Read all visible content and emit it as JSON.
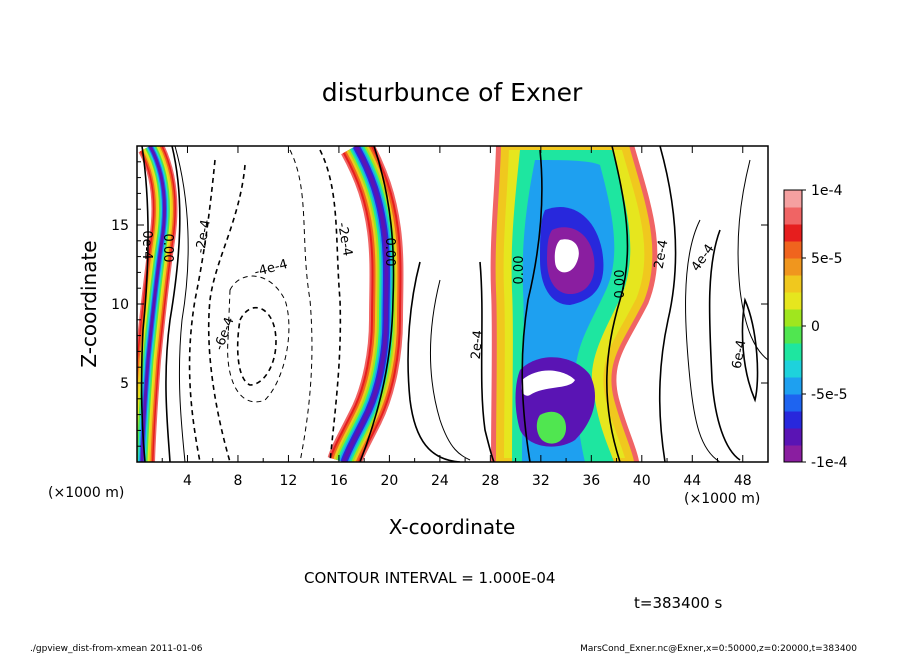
{
  "chart_data": {
    "type": "heatmap",
    "title": "disturbunce of Exner",
    "xlabel": "X-coordinate",
    "ylabel": "Z-coordinate",
    "x_unit": "(×1000 m)",
    "y_unit": "(×1000 m)",
    "xlim": [
      0,
      50
    ],
    "ylim": [
      0,
      20
    ],
    "x_ticks": [
      4,
      8,
      12,
      16,
      20,
      24,
      28,
      32,
      36,
      40,
      44,
      48
    ],
    "y_ticks": [
      5,
      10,
      15
    ],
    "colorbar": {
      "min": -0.0001,
      "max": 0.0001,
      "tick_labels": [
        "1e-4",
        "5e-5",
        "0",
        "-5e-5",
        "-1e-4"
      ],
      "colors": [
        "#8a1ea0",
        "#5a14b4",
        "#2828dc",
        "#1e64f0",
        "#1ea0f0",
        "#1ed2dc",
        "#1ee6a0",
        "#50e650",
        "#a0e61e",
        "#e6e61e",
        "#f0c81e",
        "#f0961e",
        "#f0641e",
        "#e61e1e",
        "#f06464",
        "#f5a0a0"
      ]
    },
    "contour_labels": [
      "0e-4",
      "0.00",
      "-2e-4",
      "-4e-4",
      "-6e-4",
      "-2e-4",
      "0.00",
      "2e-4",
      "0.00",
      "0.00",
      "2e-4",
      "4e-4",
      "6e-4"
    ],
    "contour_interval": "CONTOUR INTERVAL = 1.000E-04",
    "time": "t=383400  s"
  },
  "footer": {
    "left": "./gpview_dist-from-xmean  2011-01-06",
    "right": "MarsCond_Exner.nc@Exner,x=0:50000,z=0:20000,t=383400"
  }
}
